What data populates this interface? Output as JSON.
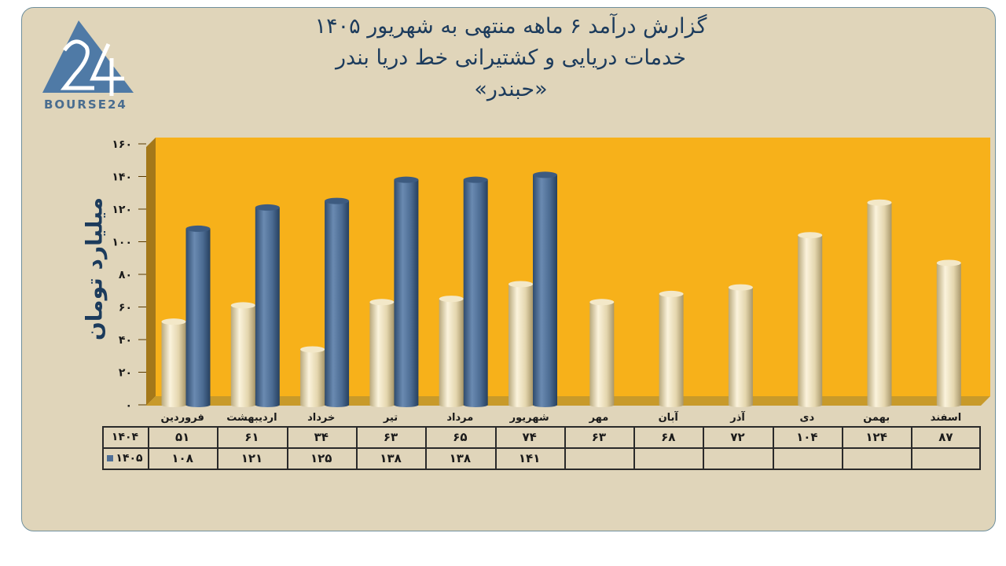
{
  "header": {
    "title_line1": "گزارش  درآمد ۶ ماهه منتهی به شهریور ۱۴۰۵",
    "title_line2": "خدمات دریایی و کشتیرانی خط دریا بندر",
    "title_line3": "«حبندر»"
  },
  "logo": {
    "text": "BOURSE24"
  },
  "colors": {
    "background": "#e0d5ba",
    "plot_area": "#f7b11a",
    "series_1404": "#e8dbb5",
    "series_1405": "#4f6f96",
    "title": "#1c3b5c"
  },
  "chart_data": {
    "type": "bar",
    "ylabel": "میلیارد تومان",
    "xlabel": "",
    "ylim": [
      0,
      160
    ],
    "yticks": [
      "۰",
      "۲۰",
      "۴۰",
      "۶۰",
      "۸۰",
      "۱۰۰",
      "۱۲۰",
      "۱۴۰",
      "۱۶۰"
    ],
    "ytick_values": [
      0,
      20,
      40,
      60,
      80,
      100,
      120,
      140,
      160
    ],
    "categories": [
      "فروردین",
      "اردیبهشت",
      "خرداد",
      "تیر",
      "مرداد",
      "شهریور",
      "مهر",
      "آبان",
      "آذر",
      "دی",
      "بهمن",
      "اسفند"
    ],
    "series": [
      {
        "name": "۱۴۰۴",
        "values": [
          51,
          61,
          34,
          63,
          65,
          74,
          63,
          68,
          72,
          104,
          124,
          87
        ],
        "labels": [
          "۵۱",
          "۶۱",
          "۳۴",
          "۶۳",
          "۶۵",
          "۷۴",
          "۶۳",
          "۶۸",
          "۷۲",
          "۱۰۴",
          "۱۲۴",
          "۸۷"
        ]
      },
      {
        "name": "۱۴۰۵",
        "values": [
          108,
          121,
          125,
          138,
          138,
          141,
          null,
          null,
          null,
          null,
          null,
          null
        ],
        "labels": [
          "۱۰۸",
          "۱۲۱",
          "۱۲۵",
          "۱۳۸",
          "۱۳۸",
          "۱۴۱",
          "",
          "",
          "",
          "",
          "",
          ""
        ]
      }
    ],
    "grid": false,
    "legend": "table"
  }
}
